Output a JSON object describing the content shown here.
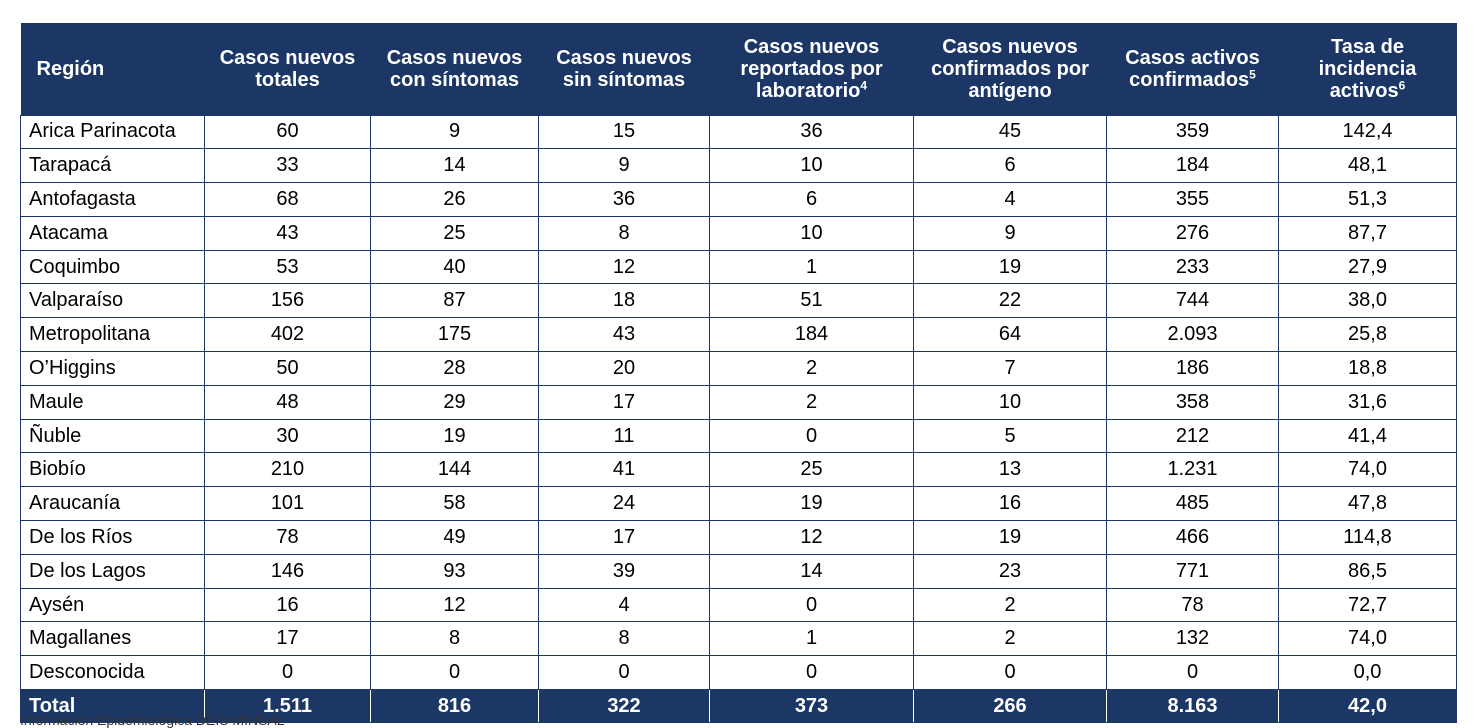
{
  "headers": [
    {
      "text": "Región",
      "sup": ""
    },
    {
      "text": "Casos nuevos totales",
      "sup": ""
    },
    {
      "text": "Casos nuevos con síntomas",
      "sup": ""
    },
    {
      "text": "Casos nuevos sin síntomas",
      "sup": ""
    },
    {
      "text": "Casos nuevos reportados por laboratorio",
      "sup": "4"
    },
    {
      "text": "Casos nuevos confirmados por antígeno",
      "sup": ""
    },
    {
      "text": "Casos activos confirmados",
      "sup": "5"
    },
    {
      "text": "Tasa de incidencia activos",
      "sup": "6"
    }
  ],
  "rows": [
    {
      "region": "Arica Parinacota",
      "values": [
        "60",
        "9",
        "15",
        "36",
        "45",
        "359",
        "142,4"
      ]
    },
    {
      "region": "Tarapacá",
      "values": [
        "33",
        "14",
        "9",
        "10",
        "6",
        "184",
        "48,1"
      ]
    },
    {
      "region": "Antofagasta",
      "values": [
        "68",
        "26",
        "36",
        "6",
        "4",
        "355",
        "51,3"
      ]
    },
    {
      "region": "Atacama",
      "values": [
        "43",
        "25",
        "8",
        "10",
        "9",
        "276",
        "87,7"
      ]
    },
    {
      "region": "Coquimbo",
      "values": [
        "53",
        "40",
        "12",
        "1",
        "19",
        "233",
        "27,9"
      ]
    },
    {
      "region": "Valparaíso",
      "values": [
        "156",
        "87",
        "18",
        "51",
        "22",
        "744",
        "38,0"
      ]
    },
    {
      "region": "Metropolitana",
      "values": [
        "402",
        "175",
        "43",
        "184",
        "64",
        "2.093",
        "25,8"
      ]
    },
    {
      "region": "O’Higgins",
      "values": [
        "50",
        "28",
        "20",
        "2",
        "7",
        "186",
        "18,8"
      ]
    },
    {
      "region": "Maule",
      "values": [
        "48",
        "29",
        "17",
        "2",
        "10",
        "358",
        "31,6"
      ]
    },
    {
      "region": "Ñuble",
      "values": [
        "30",
        "19",
        "11",
        "0",
        "5",
        "212",
        "41,4"
      ]
    },
    {
      "region": "Biobío",
      "values": [
        "210",
        "144",
        "41",
        "25",
        "13",
        "1.231",
        "74,0"
      ]
    },
    {
      "region": "Araucanía",
      "values": [
        "101",
        "58",
        "24",
        "19",
        "16",
        "485",
        "47,8"
      ]
    },
    {
      "region": "De los Ríos",
      "values": [
        "78",
        "49",
        "17",
        "12",
        "19",
        "466",
        "114,8"
      ]
    },
    {
      "region": "De los Lagos",
      "values": [
        "146",
        "93",
        "39",
        "14",
        "23",
        "771",
        "86,5"
      ]
    },
    {
      "region": "Aysén",
      "values": [
        "16",
        "12",
        "4",
        "0",
        "2",
        "78",
        "72,7"
      ]
    },
    {
      "region": "Magallanes",
      "values": [
        "17",
        "8",
        "8",
        "1",
        "2",
        "132",
        "74,0"
      ]
    },
    {
      "region": "Desconocida",
      "values": [
        "0",
        "0",
        "0",
        "0",
        "0",
        "0",
        "0,0"
      ]
    }
  ],
  "total": {
    "label": "Total",
    "values": [
      "1.511",
      "816",
      "322",
      "373",
      "266",
      "8.163",
      "42,0"
    ]
  },
  "footnote": "Información Epidemiológica DEIS MINSAL",
  "colors": {
    "header_bg": "#1c3666",
    "header_text": "#ffffff",
    "grid": "#1c3666"
  }
}
